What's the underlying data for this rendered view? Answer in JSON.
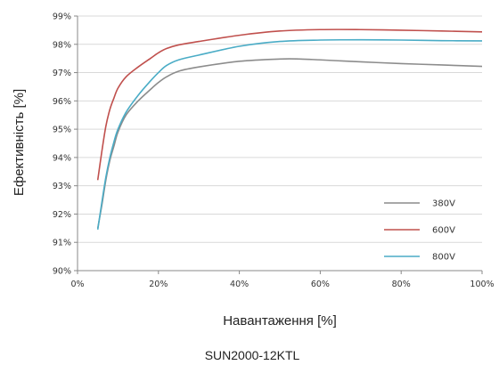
{
  "chart_data": {
    "type": "line",
    "title": "SUN2000-12KTL",
    "xlabel": "Навантаження [%]",
    "ylabel": "Ефективність [%]",
    "xlim": [
      0,
      100
    ],
    "ylim": [
      90,
      99
    ],
    "grid": "horizontal",
    "legend_position": "bottom-right",
    "x_ticks": [
      {
        "value": 0,
        "label": "0%"
      },
      {
        "value": 20,
        "label": "20%"
      },
      {
        "value": 40,
        "label": "40%"
      },
      {
        "value": 60,
        "label": "60%"
      },
      {
        "value": 80,
        "label": "80%"
      },
      {
        "value": 100,
        "label": "100%"
      }
    ],
    "y_ticks": [
      {
        "value": 90,
        "label": "90%"
      },
      {
        "value": 91,
        "label": "91%"
      },
      {
        "value": 92,
        "label": "92%"
      },
      {
        "value": 93,
        "label": "93%"
      },
      {
        "value": 94,
        "label": "94%"
      },
      {
        "value": 95,
        "label": "95%"
      },
      {
        "value": 96,
        "label": "96%"
      },
      {
        "value": 97,
        "label": "97%"
      },
      {
        "value": 98,
        "label": "98%"
      },
      {
        "value": 99,
        "label": "99%"
      }
    ],
    "series": [
      {
        "name": "380V",
        "color": "#8c8c8c",
        "points": [
          [
            5,
            91.5
          ],
          [
            6,
            92.3
          ],
          [
            7,
            93.2
          ],
          [
            8,
            93.9
          ],
          [
            9,
            94.4
          ],
          [
            10,
            94.9
          ],
          [
            12,
            95.5
          ],
          [
            15,
            96.0
          ],
          [
            18,
            96.4
          ],
          [
            20,
            96.65
          ],
          [
            22,
            96.85
          ],
          [
            25,
            97.05
          ],
          [
            30,
            97.2
          ],
          [
            40,
            97.4
          ],
          [
            50,
            97.48
          ],
          [
            55,
            97.48
          ],
          [
            60,
            97.45
          ],
          [
            70,
            97.38
          ],
          [
            80,
            97.32
          ],
          [
            90,
            97.27
          ],
          [
            100,
            97.22
          ]
        ]
      },
      {
        "name": "600V",
        "color": "#c0504d",
        "points": [
          [
            5,
            93.2
          ],
          [
            6,
            94.2
          ],
          [
            7,
            95.1
          ],
          [
            8,
            95.7
          ],
          [
            9,
            96.1
          ],
          [
            10,
            96.45
          ],
          [
            12,
            96.85
          ],
          [
            15,
            97.2
          ],
          [
            18,
            97.5
          ],
          [
            20,
            97.7
          ],
          [
            22,
            97.85
          ],
          [
            25,
            97.98
          ],
          [
            30,
            98.1
          ],
          [
            40,
            98.32
          ],
          [
            50,
            98.47
          ],
          [
            60,
            98.52
          ],
          [
            70,
            98.52
          ],
          [
            80,
            98.5
          ],
          [
            90,
            98.47
          ],
          [
            100,
            98.44
          ]
        ]
      },
      {
        "name": "800V",
        "color": "#4aacc6",
        "points": [
          [
            5,
            91.45
          ],
          [
            6,
            92.4
          ],
          [
            7,
            93.3
          ],
          [
            8,
            94.0
          ],
          [
            9,
            94.55
          ],
          [
            10,
            95.0
          ],
          [
            12,
            95.6
          ],
          [
            15,
            96.2
          ],
          [
            18,
            96.7
          ],
          [
            20,
            97.0
          ],
          [
            22,
            97.25
          ],
          [
            25,
            97.45
          ],
          [
            30,
            97.62
          ],
          [
            40,
            97.93
          ],
          [
            50,
            98.1
          ],
          [
            60,
            98.15
          ],
          [
            70,
            98.16
          ],
          [
            80,
            98.15
          ],
          [
            90,
            98.13
          ],
          [
            100,
            98.12
          ]
        ]
      }
    ]
  }
}
